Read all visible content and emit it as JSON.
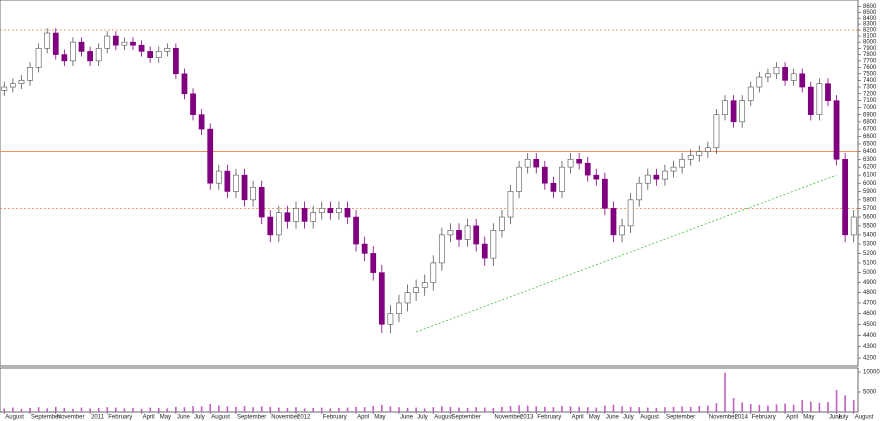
{
  "chart_data": {
    "type": "candlestick",
    "categories": [
      "August",
      null,
      null,
      "September",
      null,
      null,
      "November",
      null,
      null,
      null,
      "2011",
      null,
      "February",
      null,
      null,
      null,
      "April",
      null,
      "May",
      null,
      "June",
      null,
      "July",
      null,
      "August",
      null,
      null,
      "September",
      null,
      null,
      null,
      "November",
      null,
      null,
      "2012",
      null,
      null,
      "February",
      null,
      null,
      null,
      "April",
      null,
      "May",
      null,
      null,
      "June",
      null,
      "July",
      null,
      "August",
      null,
      "September",
      null,
      null,
      null,
      null,
      "November",
      null,
      null,
      "2013",
      null,
      "February",
      null,
      null,
      null,
      "April",
      null,
      "May",
      null,
      "June",
      null,
      "July",
      null,
      "August",
      null,
      null,
      "September",
      null,
      null,
      null,
      null,
      "November",
      null,
      null,
      "2014",
      null,
      "February",
      null,
      null,
      null,
      "April",
      null,
      "May",
      null,
      null,
      "June",
      "July",
      null,
      "August"
    ],
    "open": [
      7250,
      7300,
      7350,
      7400,
      7600,
      7900,
      8150,
      7800,
      7700,
      8000,
      7850,
      7700,
      7900,
      8100,
      7950,
      8000,
      7950,
      7850,
      7750,
      7850,
      7900,
      7500,
      7200,
      6900,
      6700,
      6000,
      6150,
      5900,
      6100,
      5800,
      5950,
      5600,
      5400,
      5650,
      5550,
      5700,
      5550,
      5650,
      5700,
      5650,
      5700,
      5600,
      5300,
      5200,
      5000,
      4500,
      4600,
      4700,
      4800,
      4850,
      4900,
      5100,
      5400,
      5450,
      5350,
      5500,
      5300,
      5150,
      5450,
      5600,
      5900,
      6200,
      6300,
      6200,
      6000,
      5900,
      6200,
      6300,
      6250,
      6100,
      6050,
      5700,
      5400,
      5500,
      5800,
      6000,
      6100,
      6050,
      6150,
      6200,
      6300,
      6350,
      6400,
      6450,
      6900,
      7100,
      6800,
      7100,
      7300,
      7450,
      7500,
      7600,
      7400,
      7500,
      7300,
      6900,
      7350,
      7100,
      6300,
      5400
    ],
    "high": [
      7380,
      7430,
      7480,
      7680,
      7980,
      8230,
      8230,
      7880,
      8080,
      8080,
      7930,
      7980,
      8180,
      8180,
      8080,
      8080,
      8030,
      7930,
      7930,
      7980,
      7980,
      7580,
      7280,
      6980,
      6780,
      6230,
      6230,
      6180,
      6180,
      6030,
      6030,
      5680,
      5730,
      5730,
      5780,
      5780,
      5730,
      5780,
      5780,
      5780,
      5780,
      5680,
      5380,
      5280,
      5080,
      4680,
      4780,
      4880,
      4930,
      4980,
      5180,
      5480,
      5530,
      5530,
      5580,
      5580,
      5380,
      5530,
      5680,
      5980,
      6280,
      6380,
      6380,
      6280,
      6080,
      6280,
      6380,
      6380,
      6330,
      6180,
      6130,
      5780,
      5580,
      5880,
      6080,
      6180,
      6180,
      6230,
      6280,
      6380,
      6430,
      6480,
      6530,
      6980,
      7180,
      7180,
      7180,
      7380,
      7530,
      7580,
      7680,
      7680,
      7580,
      7580,
      7380,
      7430,
      7430,
      7180,
      6380,
      5680
    ],
    "low": [
      7170,
      7220,
      7270,
      7320,
      7520,
      7820,
      7720,
      7620,
      7620,
      7770,
      7620,
      7620,
      7820,
      7870,
      7870,
      7870,
      7770,
      7670,
      7670,
      7770,
      7420,
      7120,
      6820,
      6620,
      5920,
      5920,
      5820,
      5820,
      5720,
      5720,
      5520,
      5320,
      5320,
      5470,
      5470,
      5470,
      5470,
      5570,
      5570,
      5570,
      5520,
      5220,
      5120,
      4920,
      4420,
      4420,
      4520,
      4620,
      4720,
      4770,
      4820,
      5020,
      5320,
      5270,
      5270,
      5220,
      5070,
      5070,
      5370,
      5520,
      5820,
      6120,
      6120,
      5920,
      5820,
      5820,
      6120,
      6170,
      6020,
      5970,
      5620,
      5320,
      5320,
      5420,
      5720,
      5920,
      5970,
      5970,
      6070,
      6120,
      6220,
      6270,
      6320,
      6370,
      6820,
      6720,
      6720,
      7020,
      7220,
      7370,
      7420,
      7320,
      7320,
      7220,
      6820,
      6820,
      7020,
      6220,
      5320,
      5320
    ],
    "close": [
      7300,
      7350,
      7400,
      7600,
      7900,
      8150,
      7800,
      7700,
      8000,
      7850,
      7700,
      7900,
      8100,
      7950,
      8000,
      7950,
      7850,
      7750,
      7850,
      7900,
      7500,
      7200,
      6900,
      6700,
      6000,
      6150,
      5900,
      6100,
      5800,
      5950,
      5600,
      5400,
      5650,
      5550,
      5700,
      5550,
      5650,
      5700,
      5650,
      5700,
      5600,
      5300,
      5200,
      5000,
      4500,
      4600,
      4700,
      4800,
      4850,
      4900,
      5100,
      5400,
      5450,
      5350,
      5500,
      5300,
      5150,
      5450,
      5600,
      5900,
      6200,
      6300,
      6200,
      6000,
      5900,
      6200,
      6300,
      6250,
      6100,
      6050,
      5700,
      5400,
      5500,
      5800,
      6000,
      6100,
      6050,
      6150,
      6200,
      6300,
      6350,
      6400,
      6450,
      6900,
      7100,
      6800,
      7100,
      7300,
      7450,
      7500,
      7600,
      7400,
      7500,
      7300,
      6900,
      7350,
      7100,
      6300,
      5400,
      5600
    ],
    "volume": [
      900,
      1100,
      800,
      1000,
      1200,
      900,
      1300,
      1000,
      800,
      1100,
      900,
      1000,
      1200,
      1100,
      900,
      1000,
      800,
      1100,
      1000,
      900,
      1300,
      1200,
      1500,
      1400,
      2000,
      1600,
      1400,
      1300,
      1500,
      1200,
      1400,
      1300,
      1100,
      1000,
      1200,
      900,
      1000,
      1100,
      900,
      1000,
      1100,
      1300,
      1200,
      1500,
      1800,
      1400,
      1200,
      1000,
      1100,
      900,
      1200,
      1400,
      1300,
      1100,
      1000,
      1200,
      1100,
      1000,
      1300,
      1500,
      1700,
      1600,
      1400,
      1300,
      1200,
      1500,
      1400,
      1300,
      1200,
      1100,
      1600,
      1800,
      1400,
      1300,
      1200,
      1100,
      1000,
      1200,
      1300,
      1400,
      1300,
      1500,
      1600,
      2200,
      9800,
      3500,
      2400,
      2000,
      1800,
      1600,
      1900,
      2100,
      1800,
      3000,
      2600,
      2300,
      2500,
      5500,
      4200,
      3000
    ],
    "up_color": "#ffffff",
    "down_color": "#800080",
    "volume_color": "#c060c0",
    "log_scale": true,
    "ylim": [
      4150,
      8700
    ],
    "yticks": [
      4200,
      4300,
      4400,
      4500,
      4600,
      4700,
      4800,
      4900,
      5000,
      5100,
      5200,
      5300,
      5400,
      5500,
      5600,
      5700,
      5800,
      5900,
      6000,
      6100,
      6200,
      6300,
      6400,
      6500,
      6600,
      6700,
      6800,
      6900,
      7000,
      7100,
      7200,
      7300,
      7400,
      7500,
      7600,
      7700,
      7800,
      7900,
      8000,
      8100,
      8200,
      8300,
      8400,
      8500,
      8600
    ],
    "volume_ylim": [
      0,
      10500
    ],
    "volume_yticks": [
      5000,
      10000
    ],
    "hlines": {
      "values": [
        8200,
        6400,
        5700
      ],
      "color": "#f08040"
    },
    "trendline": {
      "x": [
        48,
        97
      ],
      "values": [
        4430,
        6100
      ],
      "color": "#40c040"
    }
  }
}
